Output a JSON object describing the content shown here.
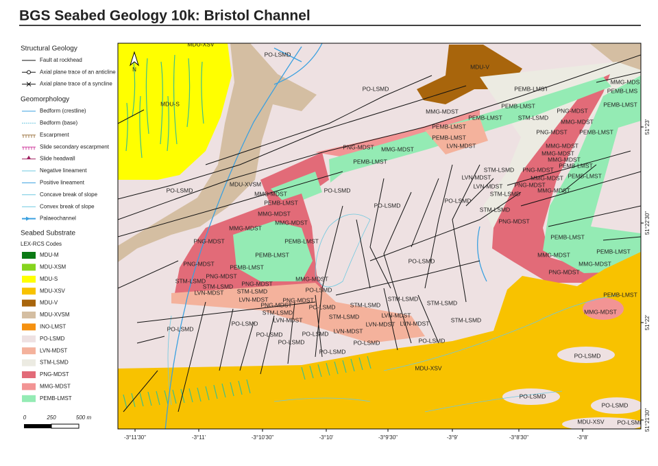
{
  "title": "BGS Seabed Geology 10k: Bristol Channel",
  "legend": {
    "structural_geology": {
      "heading": "Structural Geology",
      "items": [
        "Fault at rockhead",
        "Axial plane trace of an anticline",
        "Axial plane trace of a syncline"
      ]
    },
    "geomorphology": {
      "heading": "Geomorphology",
      "items": [
        "Bedform (crestline)",
        "Bedform (base)",
        "Escarpment",
        "Slide secondary escarpment",
        "Slide headwall",
        "Negative lineament",
        "Positive  lineament",
        "Concave break of slope",
        "Convex break of slope",
        "Palaeochannel"
      ]
    },
    "seabed_substrate": {
      "heading": "Seabed Substrate",
      "subheading": "LEX-RCS Codes",
      "units": [
        {
          "code": "MDU-M",
          "color": "#0a7a14"
        },
        {
          "code": "MDU-XSM",
          "color": "#86d41e"
        },
        {
          "code": "MDU-S",
          "color": "#ffff00"
        },
        {
          "code": "MDU-XSV",
          "color": "#f8c200"
        },
        {
          "code": "MDU-V",
          "color": "#a8650c"
        },
        {
          "code": "MDU-XVSM",
          "color": "#d4bea2"
        },
        {
          "code": "INO-LMST",
          "color": "#f59110"
        },
        {
          "code": "PO-LSMD",
          "color": "#eee1e2"
        },
        {
          "code": "LVN-MDST",
          "color": "#f4b29c"
        },
        {
          "code": "STM-LSMD",
          "color": "#ecebe2"
        },
        {
          "code": "PNG-MDST",
          "color": "#e26b78"
        },
        {
          "code": "MMG-MDST",
          "color": "#f29494"
        },
        {
          "code": "PEMB-LMST",
          "color": "#94ebb4"
        }
      ]
    }
  },
  "scale_bar": {
    "labels": [
      "0",
      "250",
      "500 m"
    ]
  },
  "map": {
    "north": "N",
    "lon_labels": [
      "-3°11'30\"",
      "-3°11'",
      "-3°10'30\"",
      "-3°10'",
      "-3°9'30\"",
      "-3°9'",
      "-3°8'30\"",
      "-3°8'"
    ],
    "lat_labels": [
      "51°23'",
      "51°22'30\"",
      "51°22'",
      "51°21'30\""
    ],
    "labels": [
      "MDU-XSV",
      "PO-LSMD",
      "MDU-V",
      "PO-LSMD",
      "MDU-S",
      "PEMB-LMST",
      "MMG-MDS",
      "PEMB-LMS",
      "PEMB-LMST",
      "MMG-MDST",
      "PEMB-LMST",
      "STM-LSMD",
      "PNG-MDST",
      "MMG-MDST",
      "PEMB-LMST",
      "PEMB-LMST",
      "PEMB-LMST",
      "PNG-MDST",
      "PEMB-LMST",
      "MMG-MDST",
      "PNG-MDST",
      "MMG-MDST",
      "LVN-MDST",
      "MMG-MDST",
      "MMG-MDST",
      "PEMB-LMST",
      "PEMB-LMST",
      "STM-LSMD",
      "PNG-MDST",
      "MMG-MDST",
      "PEMB-LMST",
      "LVN-MDST",
      "PNG-MDST",
      "LVN-MDST",
      "STM-LSMD",
      "MMG-MDST",
      "PO-LSMD",
      "MDU-XVSM",
      "PO-LSMD",
      "MMG-MDST",
      "PEMB-LMST",
      "PO-LSMD",
      "PO-LSMD",
      "STM-LSMD",
      "MMG-MDST",
      "MMG-MDST",
      "MMG-MDST",
      "PNG-MDST",
      "PNG-MDST",
      "PEMB-LMST",
      "PEMB-LMST",
      "PEMB-LMST",
      "PEMB-LMST",
      "MMG-MDST",
      "PO-LSMD",
      "MMG-MDST",
      "PNG-MDST",
      "PEMB-LMST",
      "PNG-MDST",
      "PNG-MDST",
      "STM-LSMD",
      "STM-LSMD",
      "MMG-MDST",
      "PNG-MDST",
      "STM-LSMD",
      "LVN-MDST",
      "PO-LSMD",
      "PEMB-LMST",
      "LVN-MDST",
      "STM-LSMD",
      "PNG-MDST",
      "PNG-MDST",
      "STM-LSMD",
      "STM-LSMD",
      "PO-LSMD",
      "STM-LSMD",
      "MMG-MDST",
      "LVN-MDST",
      "STM-LSMD",
      "LVN-MDST",
      "PO-LSMD",
      "LVN-MDST",
      "LVN-MDST",
      "STM-LSMD",
      "PO-LSMD",
      "PO-LSMD",
      "PO-LSMD",
      "LVN-MDST",
      "PO-LSMD",
      "PO-LSMD",
      "PO-LSMD",
      "PO-LSMD",
      "MDU-XSV",
      "PO-LSMD",
      "PO-LSMD",
      "PO-LSMD",
      "MDU-XSV",
      "PO-LSMI"
    ]
  }
}
